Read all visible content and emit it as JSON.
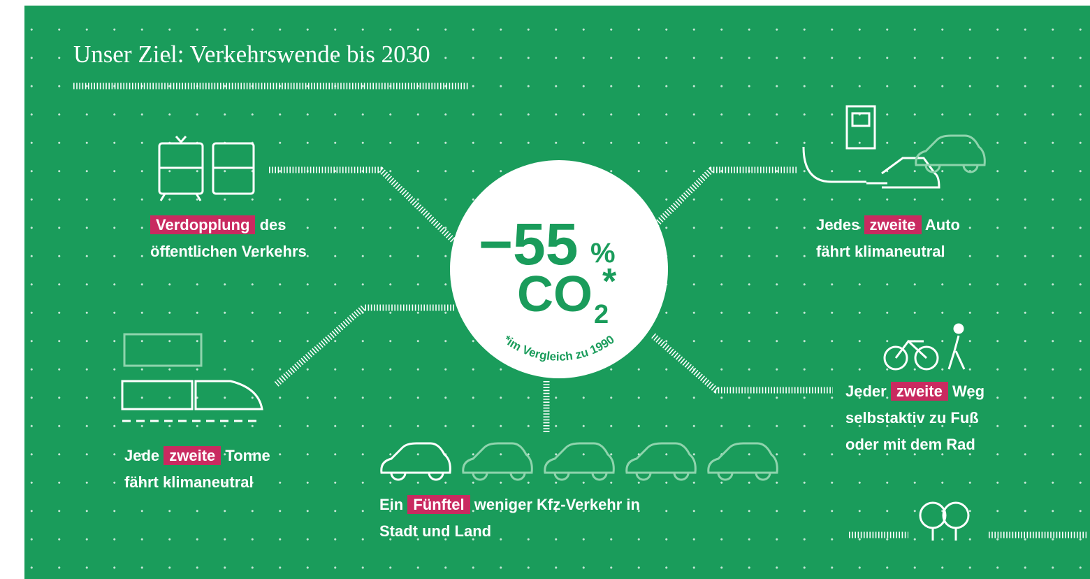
{
  "title": "Unser Ziel: Verkehrswende bis 2030",
  "center": {
    "value": "−55",
    "unit": "%",
    "gas": "CO",
    "subscript": "2",
    "asterisk": "*",
    "note": "*im Vergleich zu 1990"
  },
  "blocks": [
    {
      "highlight": "Verdopplung",
      "tail": " des",
      "lines": [
        "öffentlichen Verkehrs"
      ]
    },
    {
      "lead": "Jedes ",
      "highlight": "zweite",
      "tail": " Auto",
      "lines": [
        "fährt klimaneutral"
      ]
    },
    {
      "lead": "Jede ",
      "highlight": "zweite",
      "tail": " Tonne",
      "lines": [
        "fährt klimaneutral"
      ]
    },
    {
      "lead": "Ein ",
      "highlight": "Fünftel",
      "tail": " weniger Kfz-Verkehr in",
      "lines": [
        "Stadt und Land"
      ]
    },
    {
      "lead": "Jeder ",
      "highlight": "zweite",
      "tail": " Weg",
      "lines": [
        "selbstaktiv zu Fuß",
        "oder mit dem Rad"
      ]
    }
  ]
}
